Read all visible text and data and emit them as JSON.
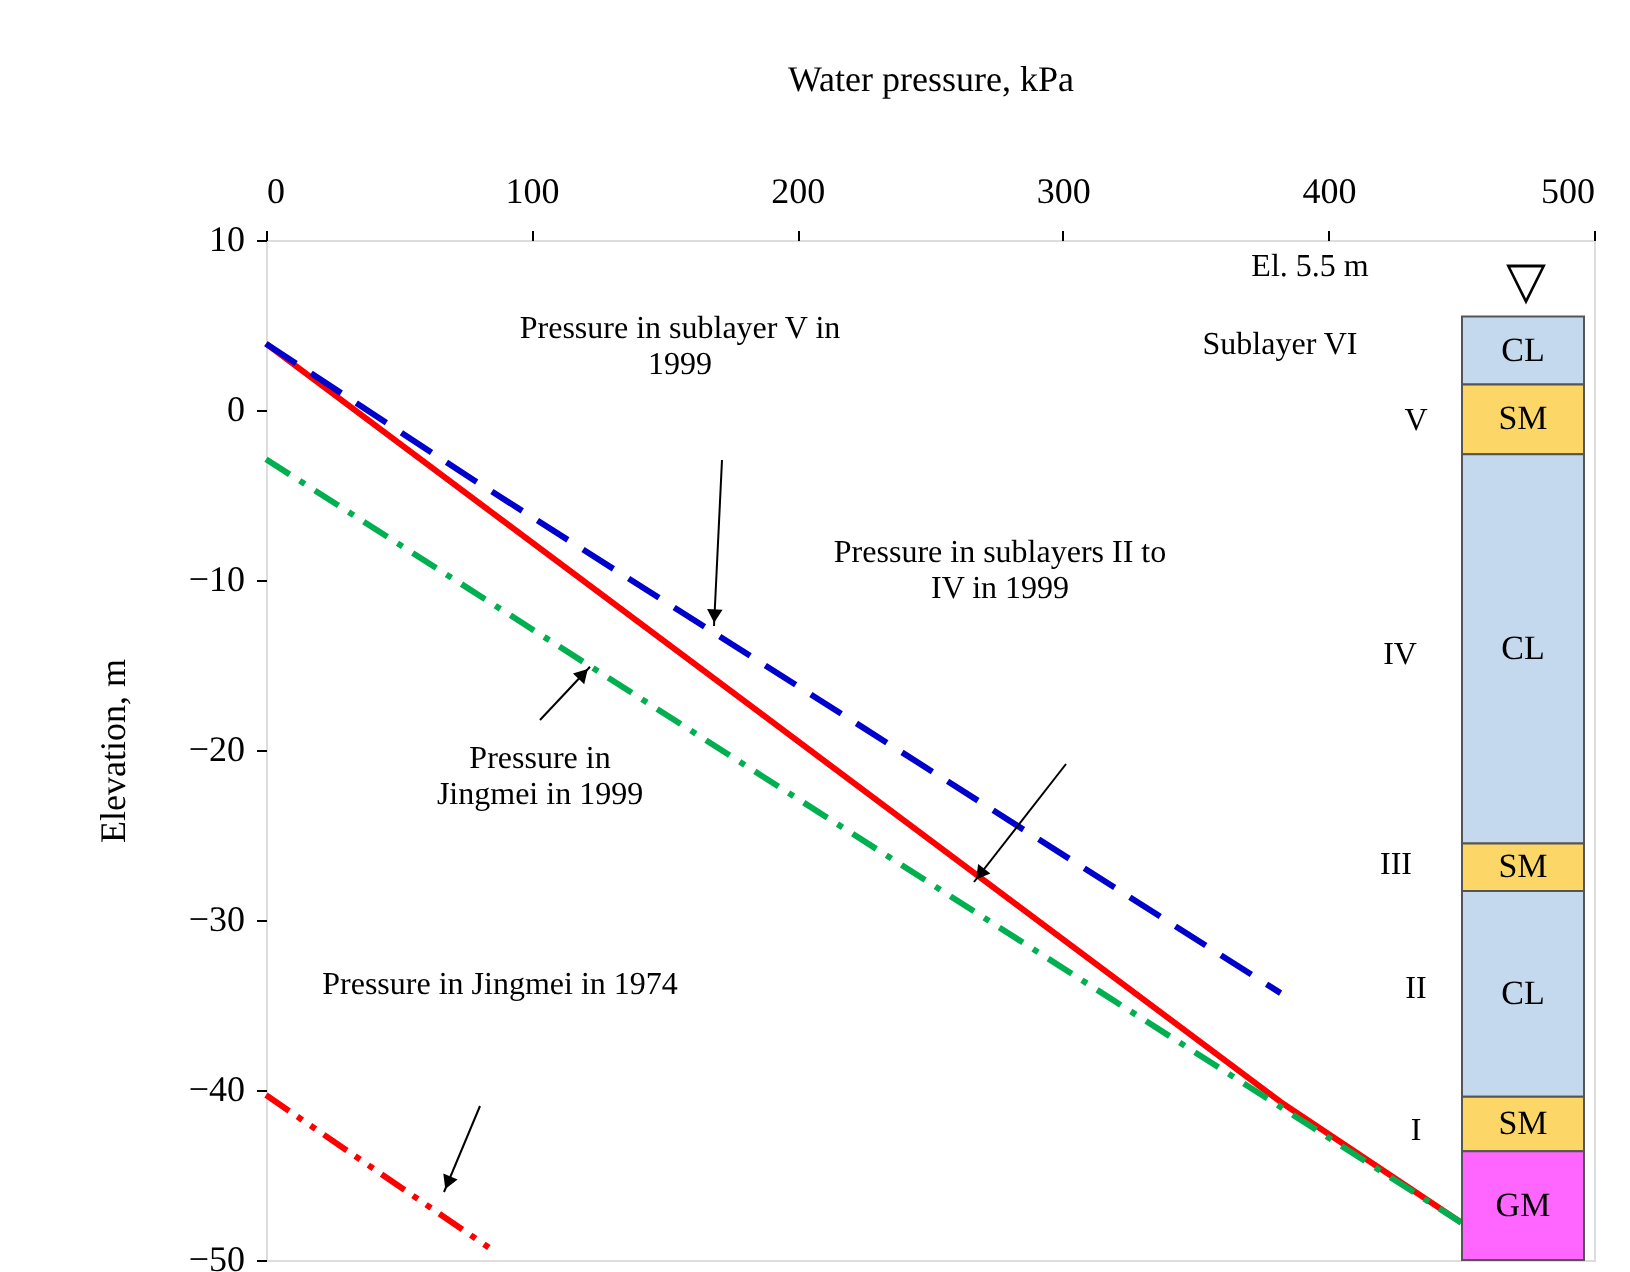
{
  "chart_data": {
    "type": "line",
    "xlabel": "Water pressure, kPa",
    "ylabel": "Elevation, m",
    "xlim": [
      0,
      500
    ],
    "xticks": [
      0,
      100,
      200,
      300,
      400,
      500
    ],
    "ylim": [
      -50,
      10
    ],
    "yticks": [
      10,
      0,
      -10,
      -20,
      -30,
      -40,
      -50
    ],
    "series": [
      {
        "color": "#ff0000",
        "line_style": "solid",
        "x": [
          0,
          382,
          450
        ],
        "values": [
          3.9,
          -40.7,
          -47.8
        ]
      },
      {
        "color": "#0000cc",
        "line_style": "dashed",
        "x": [
          0,
          75,
          382
        ],
        "values": [
          3.9,
          -3.8,
          -34.3
        ]
      },
      {
        "color": "#00b050",
        "line_style": "dashdot",
        "x": [
          0,
          382,
          450
        ],
        "values": [
          -2.9,
          -41.0,
          -47.8
        ]
      },
      {
        "color": "#ff0000",
        "line_style": "dashdotdot",
        "x": [
          0,
          87
        ],
        "values": [
          -40.3,
          -49.6
        ]
      }
    ],
    "bands": [
      {
        "axis": "y",
        "from": 5.5,
        "to": 1.5,
        "label": "CL",
        "color": "#c5d9ee"
      },
      {
        "axis": "y",
        "from": 1.5,
        "to": -2.6,
        "label": "SM",
        "color": "#fcd666"
      },
      {
        "axis": "y",
        "from": -2.6,
        "to": -25.5,
        "label": "CL",
        "color": "#c5d9ee"
      },
      {
        "axis": "y",
        "from": -25.5,
        "to": -28.3,
        "label": "SM",
        "color": "#fcd666"
      },
      {
        "axis": "y",
        "from": -28.3,
        "to": -40.4,
        "label": "CL",
        "color": "#c5d9ee"
      },
      {
        "axis": "y",
        "from": -40.4,
        "to": -43.6,
        "label": "SM",
        "color": "#fcd666"
      },
      {
        "axis": "y",
        "from": -43.6,
        "to": -50,
        "label": "GM",
        "color": "#ff66ff"
      }
    ],
    "annotations": [
      "Pressure in sublayer V in\n1999",
      "Pressure in sublayers II to\nIV in 1999",
      {
        "text": "Pressure in\nJingmei in 1999",
        "x": 122,
        "y": -15.1
      },
      "Pressure in Jingmei in 1974",
      "Sublayer VI",
      "V",
      "IV",
      "III",
      "II",
      "I",
      "El. 5.5 m",
      "▽"
    ]
  }
}
